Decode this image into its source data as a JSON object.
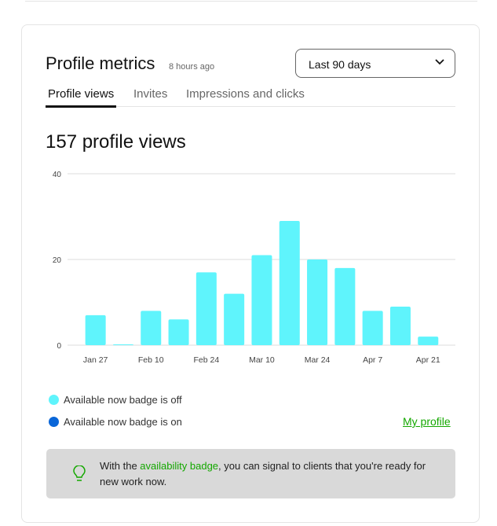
{
  "header": {
    "title": "Profile metrics",
    "updated": "8 hours ago",
    "range_select": "Last 90 days"
  },
  "tabs": [
    {
      "label": "Profile views"
    },
    {
      "label": "Invites"
    },
    {
      "label": "Impressions and clicks"
    }
  ],
  "summary": "157 profile views",
  "chart_data": {
    "type": "bar",
    "categories": [
      "Jan 27",
      "",
      "Feb 10",
      "",
      "Feb 24",
      "",
      "Mar 10",
      "",
      "Mar 24",
      "",
      "Apr 7",
      "",
      "Apr 21"
    ],
    "series": [
      {
        "name": "Available now badge is off",
        "color": "#5ff4fc",
        "values": [
          7,
          0,
          8,
          6,
          17,
          12,
          21,
          29,
          20,
          18,
          8,
          9,
          2
        ]
      }
    ],
    "yticks": [
      0,
      20,
      40
    ],
    "ylim": [
      0,
      40
    ],
    "grid": true
  },
  "legend": [
    {
      "label": "Available now badge is off",
      "color": "#5ff4fc"
    },
    {
      "label": "Available now badge is on",
      "color": "#0a66d8"
    }
  ],
  "my_profile_link": "My profile",
  "tip": {
    "before": "With the ",
    "link": "availability badge",
    "after": ", you can signal to clients that you're ready for new work now.",
    "icon": "lightbulb-icon"
  }
}
